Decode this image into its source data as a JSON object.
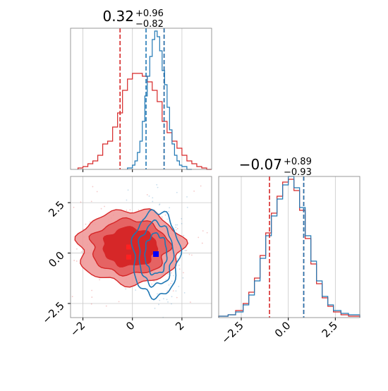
{
  "chart_data": [
    {
      "type": "histogram",
      "panel": "top-left 1D marginal (parameter 1)",
      "title": {
        "value": "0.32",
        "upper": "+0.96",
        "lower": "−0.82"
      },
      "xlim": [
        -2.5,
        3.2
      ],
      "ylim": [
        0,
        1.0
      ],
      "grid": true,
      "series": [
        {
          "color": "#d62728",
          "bin_edges": [
            -2.2,
            -2.0,
            -1.8,
            -1.6,
            -1.4,
            -1.2,
            -1.0,
            -0.8,
            -0.6,
            -0.4,
            -0.2,
            0.0,
            0.2,
            0.4,
            0.6,
            0.8,
            1.0,
            1.2,
            1.4,
            1.6,
            1.8,
            2.0,
            2.2,
            2.4,
            2.6,
            2.8,
            3.0,
            3.2
          ],
          "values": [
            0.01,
            0.02,
            0.04,
            0.06,
            0.1,
            0.18,
            0.2,
            0.3,
            0.4,
            0.56,
            0.64,
            0.68,
            0.68,
            0.66,
            0.62,
            0.56,
            0.48,
            0.34,
            0.26,
            0.2,
            0.15,
            0.1,
            0.06,
            0.04,
            0.02,
            0.01,
            0.0
          ],
          "quantiles": [
            -0.5,
            1.28
          ]
        },
        {
          "color": "#1f77b4",
          "bin_edges": [
            -0.2,
            0.0,
            0.1,
            0.2,
            0.3,
            0.4,
            0.5,
            0.6,
            0.7,
            0.8,
            0.9,
            1.0,
            1.1,
            1.2,
            1.3,
            1.4,
            1.5,
            1.6,
            1.7,
            1.8,
            1.9,
            2.0,
            2.2,
            2.4
          ],
          "values": [
            0.01,
            0.03,
            0.06,
            0.12,
            0.2,
            0.34,
            0.52,
            0.66,
            0.8,
            0.92,
            0.98,
            0.94,
            0.84,
            0.7,
            0.6,
            0.44,
            0.28,
            0.18,
            0.1,
            0.06,
            0.03,
            0.02,
            0.0
          ],
          "quantiles": [
            0.55,
            1.28
          ]
        }
      ],
      "xticks": [
        -2,
        0,
        2
      ]
    },
    {
      "type": "contour",
      "panel": "bottom-left 2D joint",
      "xlim": [
        -2.5,
        3.2
      ],
      "ylim": [
        -3.2,
        3.8
      ],
      "xticks": [
        -2,
        0,
        2
      ],
      "xtick_labels": [
        "−2",
        "0",
        "2"
      ],
      "yticks": [
        -2.5,
        0.0,
        2.5
      ],
      "ytick_labels": [
        "−2.5",
        "0.0",
        "2.5"
      ],
      "grid": true,
      "series": [
        {
          "color": "#d62728",
          "center": [
            -0.1,
            0.3
          ],
          "sigma_x": 1.2,
          "sigma_y": 1.05,
          "marker": [
            -0.15,
            0.3
          ]
        },
        {
          "color": "#1f77b4",
          "center": [
            0.95,
            -0.05
          ],
          "sigma_x": 0.55,
          "sigma_y": 1.25,
          "marker": [
            0.95,
            -0.05
          ]
        }
      ]
    },
    {
      "type": "histogram",
      "panel": "bottom-right 1D marginal (parameter 2)",
      "title": {
        "value": "−0.07",
        "upper": "+0.89",
        "lower": "−0.93"
      },
      "xlim": [
        -3.7,
        3.8
      ],
      "ylim": [
        0,
        1.0
      ],
      "xticks": [
        -2.5,
        0.0,
        2.5
      ],
      "xtick_labels": [
        "−2.5",
        "0.0",
        "2.5"
      ],
      "grid": true,
      "series": [
        {
          "color": "#d62728",
          "bin_edges": [
            -3.7,
            -3.2,
            -2.8,
            -2.4,
            -2.1,
            -1.8,
            -1.5,
            -1.2,
            -0.9,
            -0.6,
            -0.3,
            0.0,
            0.3,
            0.6,
            0.9,
            1.2,
            1.5,
            1.8,
            2.1,
            2.4,
            2.8,
            3.2,
            3.8
          ],
          "values": [
            0.01,
            0.02,
            0.05,
            0.1,
            0.18,
            0.28,
            0.44,
            0.6,
            0.74,
            0.86,
            0.96,
            0.98,
            0.9,
            0.76,
            0.56,
            0.38,
            0.24,
            0.14,
            0.08,
            0.04,
            0.02,
            0.01
          ],
          "quantiles": [
            -1.0,
            0.82
          ]
        },
        {
          "color": "#1f77b4",
          "bin_edges": [
            -3.7,
            -3.2,
            -2.8,
            -2.4,
            -2.1,
            -1.8,
            -1.5,
            -1.2,
            -0.9,
            -0.6,
            -0.3,
            0.0,
            0.3,
            0.6,
            0.9,
            1.2,
            1.5,
            1.8,
            2.1,
            2.4,
            2.8,
            3.2,
            3.8
          ],
          "values": [
            0.01,
            0.02,
            0.04,
            0.09,
            0.16,
            0.26,
            0.42,
            0.58,
            0.72,
            0.84,
            0.94,
            1.0,
            0.92,
            0.78,
            0.58,
            0.4,
            0.26,
            0.15,
            0.09,
            0.05,
            0.03,
            0.02
          ],
          "quantiles": [
            0.82
          ]
        }
      ]
    }
  ]
}
